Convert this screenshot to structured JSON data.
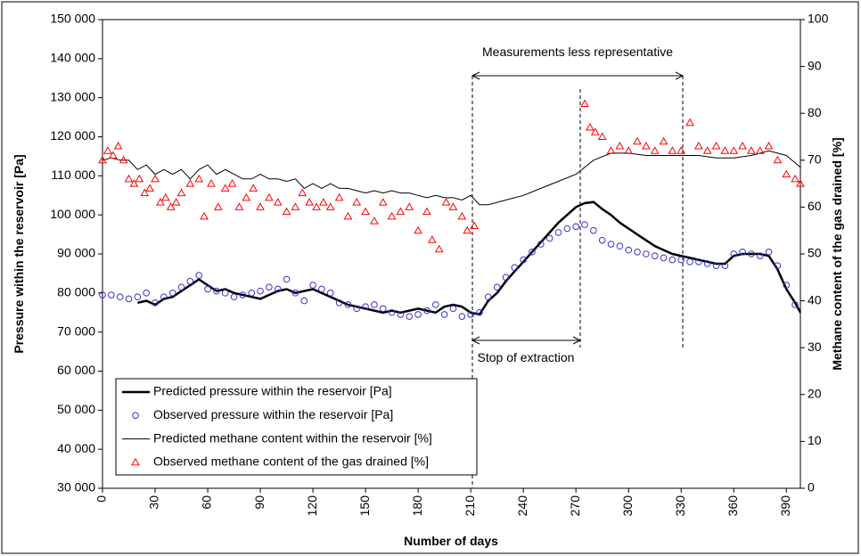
{
  "chart_data": {
    "type": "line",
    "xlabel": "Number of days",
    "ylabel": "Pressure within the reservoir [Pa]",
    "y2label": "Methane content of the gas drained [%]",
    "annotations": [
      "Measurements less representative",
      "Stop of extraction"
    ],
    "legend": "lower left",
    "xlim": [
      0,
      398
    ],
    "xticks": [
      0,
      30,
      60,
      90,
      120,
      150,
      180,
      210,
      240,
      270,
      300,
      330,
      360,
      390
    ],
    "ylim": [
      30000,
      150000
    ],
    "yticks": [
      {
        "value": 30000,
        "label": "30 000"
      },
      {
        "value": 40000,
        "label": "40 000"
      },
      {
        "value": 50000,
        "label": "50 000"
      },
      {
        "value": 60000,
        "label": "60 000"
      },
      {
        "value": 70000,
        "label": "70 000"
      },
      {
        "value": 80000,
        "label": "80 000"
      },
      {
        "value": 90000,
        "label": "90 000"
      },
      {
        "value": 100000,
        "label": "100 000"
      },
      {
        "value": 110000,
        "label": "110 000"
      },
      {
        "value": 120000,
        "label": "120 000"
      },
      {
        "value": 130000,
        "label": "130 000"
      },
      {
        "value": 140000,
        "label": "140 000"
      },
      {
        "value": 150000,
        "label": "150 000"
      }
    ],
    "y2lim": [
      0,
      100
    ],
    "y2ticks": [
      0,
      10,
      20,
      30,
      40,
      50,
      60,
      70,
      80,
      90,
      100
    ],
    "series": [
      {
        "name": "Predicted pressure within the reservoir [Pa]",
        "kind": "line",
        "color": "#000000",
        "width": 2.5,
        "x": [
          20,
          25,
          30,
          35,
          40,
          45,
          50,
          55,
          60,
          65,
          70,
          75,
          80,
          85,
          90,
          95,
          100,
          105,
          110,
          115,
          120,
          125,
          130,
          135,
          140,
          145,
          150,
          155,
          160,
          165,
          170,
          175,
          180,
          185,
          190,
          195,
          200,
          205,
          210,
          215,
          220,
          225,
          230,
          235,
          240,
          245,
          250,
          255,
          260,
          265,
          270,
          275,
          280,
          285,
          290,
          295,
          300,
          305,
          310,
          315,
          320,
          325,
          330,
          335,
          340,
          345,
          350,
          355,
          360,
          365,
          370,
          375,
          380,
          385,
          390,
          395,
          398
        ],
        "values": [
          77500,
          78000,
          77000,
          78500,
          79000,
          80500,
          82000,
          83500,
          82000,
          80500,
          81000,
          80000,
          79500,
          79000,
          78500,
          79500,
          80500,
          81000,
          80000,
          80500,
          81000,
          80000,
          79000,
          78000,
          77000,
          76500,
          76000,
          75500,
          75000,
          75500,
          75000,
          75500,
          76000,
          75500,
          75000,
          76500,
          77000,
          76500,
          75000,
          74500,
          78000,
          80000,
          83000,
          85500,
          88000,
          90500,
          93000,
          95500,
          98000,
          100000,
          102000,
          103000,
          103300,
          101500,
          100000,
          98000,
          96500,
          95000,
          93500,
          92000,
          91000,
          90000,
          89500,
          89000,
          88500,
          88000,
          87500,
          87500,
          89500,
          90000,
          90000,
          90000,
          89500,
          86000,
          81000,
          77500,
          75000
        ]
      },
      {
        "name": "Observed pressure within the reservoir [Pa]",
        "kind": "circle",
        "color": "#3333cc",
        "x": [
          0,
          5,
          10,
          15,
          20,
          25,
          30,
          35,
          40,
          45,
          50,
          55,
          60,
          65,
          70,
          75,
          80,
          85,
          90,
          95,
          100,
          105,
          110,
          115,
          120,
          125,
          130,
          135,
          140,
          145,
          150,
          155,
          160,
          165,
          170,
          175,
          180,
          185,
          190,
          195,
          200,
          205,
          210,
          215,
          220,
          225,
          230,
          235,
          240,
          245,
          250,
          255,
          260,
          265,
          270,
          275,
          280,
          285,
          290,
          295,
          300,
          305,
          310,
          315,
          320,
          325,
          330,
          335,
          340,
          345,
          350,
          355,
          360,
          365,
          370,
          375,
          380,
          385,
          390,
          395
        ],
        "values": [
          79500,
          79500,
          79000,
          78500,
          79000,
          80000,
          77500,
          79000,
          80000,
          81500,
          83000,
          84500,
          81000,
          80500,
          80000,
          79000,
          79500,
          80000,
          80500,
          81500,
          81000,
          83500,
          80000,
          78000,
          82000,
          81000,
          80000,
          77500,
          77000,
          76000,
          76500,
          77000,
          76000,
          75000,
          74500,
          74000,
          74500,
          75500,
          77000,
          74500,
          76000,
          74000,
          74500,
          75000,
          79000,
          81500,
          84000,
          86500,
          88500,
          90500,
          92500,
          94000,
          95500,
          96500,
          97000,
          97500,
          96000,
          93500,
          92500,
          92000,
          91000,
          90500,
          90000,
          89500,
          89000,
          88500,
          88500,
          88000,
          88000,
          87500,
          87000,
          87000,
          90000,
          90500,
          90000,
          89500,
          90500,
          87000,
          82000,
          77000
        ]
      },
      {
        "name": "Predicted methane content within the reservoir [%]",
        "kind": "line",
        "color": "#000000",
        "width": 1,
        "axis": "y2",
        "x": [
          0,
          5,
          10,
          15,
          20,
          25,
          30,
          35,
          40,
          45,
          50,
          55,
          60,
          65,
          70,
          75,
          80,
          85,
          90,
          95,
          100,
          105,
          110,
          115,
          120,
          125,
          130,
          135,
          140,
          145,
          150,
          155,
          160,
          165,
          170,
          175,
          180,
          185,
          190,
          195,
          200,
          205,
          210,
          215,
          220,
          225,
          230,
          240,
          250,
          260,
          270,
          280,
          290,
          300,
          310,
          320,
          330,
          340,
          350,
          360,
          370,
          380,
          390,
          398
        ],
        "values": [
          70,
          70.5,
          70,
          70,
          68,
          69,
          67,
          68,
          67,
          68,
          66,
          68,
          69,
          67,
          68,
          67,
          66,
          66,
          67,
          66,
          66,
          65.5,
          66,
          64,
          65,
          64,
          65,
          64,
          64,
          63.5,
          63,
          63.5,
          63,
          63.5,
          63,
          63,
          62.5,
          62,
          62.5,
          62,
          62,
          61.5,
          62.5,
          60.5,
          60.5,
          61,
          61.5,
          62.5,
          64,
          65.5,
          67,
          70,
          71.5,
          71.5,
          71,
          71,
          71,
          71,
          70.5,
          70.5,
          71,
          72,
          71,
          68.5
        ]
      },
      {
        "name": "Observed methane content of the gas drained [%]",
        "kind": "triangle",
        "color": "#ff0000",
        "axis": "y2",
        "x": [
          0,
          3,
          6,
          9,
          12,
          15,
          18,
          21,
          24,
          27,
          30,
          33,
          36,
          39,
          42,
          45,
          50,
          55,
          58,
          62,
          66,
          70,
          74,
          78,
          82,
          86,
          90,
          95,
          100,
          105,
          110,
          114,
          118,
          122,
          126,
          130,
          135,
          140,
          145,
          150,
          155,
          160,
          165,
          170,
          175,
          180,
          185,
          188,
          192,
          196,
          200,
          205,
          208,
          212,
          275,
          278,
          281,
          285,
          290,
          295,
          300,
          305,
          310,
          315,
          320,
          325,
          330,
          335,
          340,
          345,
          350,
          355,
          360,
          365,
          370,
          375,
          380,
          385,
          390,
          395,
          398
        ],
        "values": [
          70,
          72,
          71,
          73,
          70,
          66,
          65,
          66,
          63,
          64,
          66,
          61,
          62,
          60,
          61,
          63,
          65,
          66,
          58,
          65,
          60,
          64,
          65,
          60,
          62,
          64,
          60,
          62,
          61,
          59,
          60,
          63,
          61,
          60,
          61,
          60,
          62,
          58,
          61,
          59,
          57,
          61,
          58,
          59,
          60,
          55,
          59,
          53,
          51,
          61,
          60,
          58,
          55,
          56,
          82,
          77,
          76,
          75,
          72,
          73,
          72,
          74,
          73,
          72,
          74,
          72,
          72,
          78,
          73,
          72,
          73,
          72,
          72,
          73,
          72,
          72,
          73,
          70,
          67,
          66,
          65
        ]
      }
    ]
  }
}
